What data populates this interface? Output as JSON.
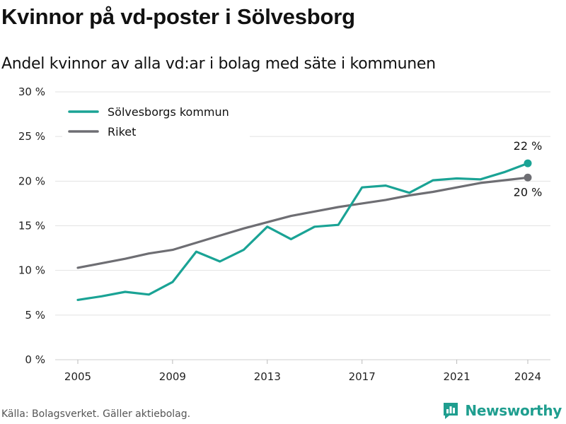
{
  "title": "Kvinnor på vd-poster i Sölvesborg",
  "subtitle": "Andel kvinnor av alla vd:ar i bolag med säte i kommunen",
  "source": "Källa: Bolagsverket. Gäller aktiebolag.",
  "brand": "Newsworthy",
  "colors": {
    "teal": "#1aa395",
    "gray": "#6e6e73",
    "grid": "#e2e2e2"
  },
  "chart_data": {
    "type": "line",
    "title": "Kvinnor på vd-poster i Sölvesborg",
    "xlabel": "",
    "ylabel": "",
    "x": [
      2005,
      2006,
      2007,
      2008,
      2009,
      2010,
      2011,
      2012,
      2013,
      2014,
      2015,
      2016,
      2017,
      2018,
      2019,
      2020,
      2021,
      2022,
      2023,
      2024
    ],
    "xticks": [
      2005,
      2009,
      2013,
      2017,
      2021,
      2024
    ],
    "xtick_labels": [
      "2005",
      "2009",
      "2013",
      "2017",
      "2021",
      "2024"
    ],
    "ylim": [
      0,
      30
    ],
    "yticks": [
      0,
      5,
      10,
      15,
      20,
      25,
      30
    ],
    "ytick_labels": [
      "0 %",
      "5 %",
      "10 %",
      "15 %",
      "20 %",
      "25 %",
      "30 %"
    ],
    "grid": true,
    "legend": "top-left",
    "series": [
      {
        "name": "Sölvesborgs kommun",
        "color": "#1aa395",
        "values": [
          6.7,
          7.1,
          7.6,
          7.3,
          8.7,
          12.1,
          11.0,
          12.3,
          14.9,
          13.5,
          14.9,
          15.1,
          19.3,
          19.5,
          18.7,
          20.1,
          20.3,
          20.2,
          21.0,
          22.0
        ],
        "end_label": "22 %"
      },
      {
        "name": "Riket",
        "color": "#6e6e73",
        "values": [
          10.3,
          10.8,
          11.3,
          11.9,
          12.3,
          13.1,
          13.9,
          14.7,
          15.4,
          16.1,
          16.6,
          17.1,
          17.5,
          17.9,
          18.4,
          18.8,
          19.3,
          19.8,
          20.1,
          20.4
        ],
        "end_label": "20 %"
      }
    ]
  }
}
